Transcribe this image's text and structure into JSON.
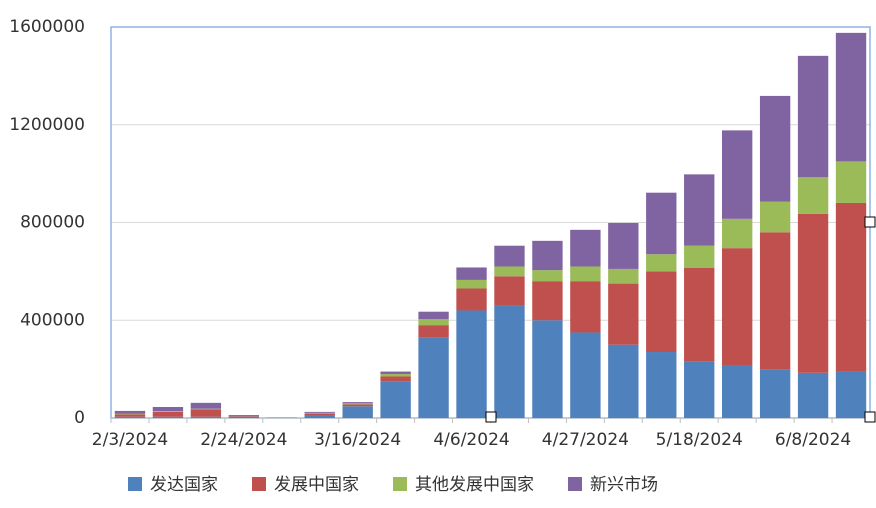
{
  "chart_data": {
    "type": "stacked_bar",
    "categories": [
      "2/3/2024",
      null,
      null,
      "2/24/2024",
      null,
      null,
      "3/16/2024",
      null,
      null,
      "4/6/2024",
      null,
      null,
      "4/27/2024",
      null,
      null,
      "5/18/2024",
      null,
      null,
      "6/8/2024",
      null
    ],
    "series": [
      {
        "name": "发达国家",
        "color": "#4f81bd",
        "values": [
          5000,
          5000,
          5000,
          2000,
          500,
          10000,
          48000,
          150000,
          330000,
          440000,
          460000,
          400000,
          350000,
          300000,
          270000,
          230000,
          215000,
          200000,
          185000,
          190000
        ]
      },
      {
        "name": "发展中国家",
        "color": "#c0504d",
        "values": [
          10000,
          20000,
          30000,
          4000,
          500,
          8000,
          8000,
          20000,
          50000,
          90000,
          120000,
          160000,
          210000,
          250000,
          330000,
          385000,
          480000,
          560000,
          650000,
          690000
        ]
      },
      {
        "name": "其他发展中国家",
        "color": "#9bbb59",
        "values": [
          2000,
          3000,
          3000,
          1000,
          200,
          3000,
          4000,
          10000,
          25000,
          35000,
          40000,
          45000,
          60000,
          60000,
          70000,
          90000,
          120000,
          125000,
          150000,
          170000
        ]
      },
      {
        "name": "新兴市场",
        "color": "#8064a2",
        "values": [
          12000,
          17000,
          24000,
          5000,
          800,
          4000,
          5000,
          10000,
          30000,
          51000,
          85000,
          120000,
          150000,
          188000,
          252000,
          292000,
          362000,
          433000,
          497000,
          526000
        ]
      }
    ],
    "ylim": [
      0,
      1600000
    ],
    "yticks": [
      0,
      400000,
      800000,
      1200000,
      1600000
    ],
    "grid": true
  }
}
